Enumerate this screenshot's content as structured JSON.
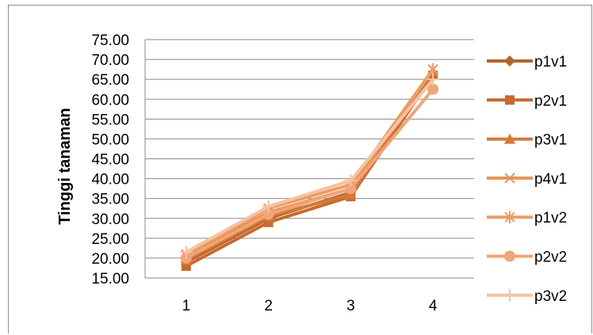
{
  "chart_data": {
    "type": "line",
    "title": "",
    "xlabel": "",
    "ylabel": "Tinggi  tanaman",
    "categories": [
      "1",
      "2",
      "3",
      "4"
    ],
    "ylim": [
      15,
      75
    ],
    "yticks": [
      "15.00",
      "20.00",
      "25.00",
      "30.00",
      "35.00",
      "40.00",
      "45.00",
      "50.00",
      "55.00",
      "60.00",
      "65.00",
      "70.00",
      "75.00"
    ],
    "grid": true,
    "legend_position": "right",
    "series": [
      {
        "name": "p1v1",
        "marker": "diamond",
        "color": "#b5652b",
        "values": [
          19.0,
          30.0,
          36.5,
          66.5
        ]
      },
      {
        "name": "p2v1",
        "marker": "square",
        "color": "#c8692d",
        "values": [
          18.0,
          29.0,
          35.5,
          66.0
        ]
      },
      {
        "name": "p3v1",
        "marker": "triangle",
        "color": "#d4793c",
        "values": [
          19.5,
          30.5,
          36.0,
          67.0
        ]
      },
      {
        "name": "p4v1",
        "marker": "x",
        "color": "#e89355",
        "values": [
          20.5,
          31.5,
          37.5,
          67.5
        ]
      },
      {
        "name": "p1v2",
        "marker": "star",
        "color": "#eb9c62",
        "values": [
          21.0,
          32.5,
          38.5,
          67.5
        ]
      },
      {
        "name": "p2v2",
        "marker": "circle",
        "color": "#efa577",
        "values": [
          20.0,
          31.0,
          37.5,
          62.5
        ]
      },
      {
        "name": "p3v2",
        "marker": "plus",
        "color": "#f5c3a3",
        "values": [
          21.5,
          33.0,
          39.5,
          65.0
        ]
      }
    ]
  }
}
